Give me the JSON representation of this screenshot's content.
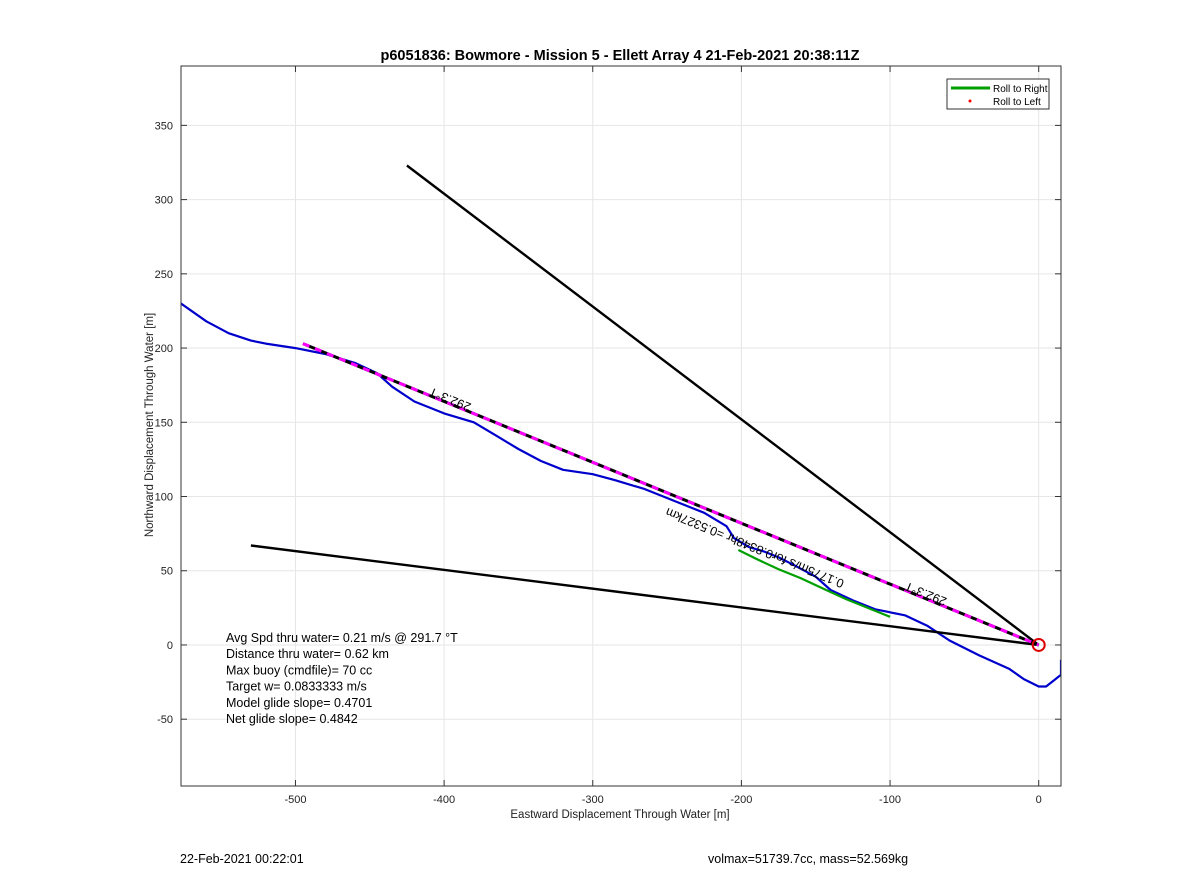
{
  "chart_data": {
    "type": "line",
    "title": "p6051836: Bowmore - Mission 5 - Ellett Array 4 21-Feb-2021 20:38:11Z",
    "xlabel": "Eastward Displacement Through Water [m]",
    "ylabel": "Northward Displacement Through Water [m]",
    "xlim": [
      -577,
      15
    ],
    "ylim": [
      -95,
      390
    ],
    "xticks": [
      -500,
      -400,
      -300,
      -200,
      -100,
      0
    ],
    "yticks": [
      -50,
      0,
      50,
      100,
      150,
      200,
      250,
      300,
      350
    ],
    "grid": true,
    "legend": {
      "position": "top-right",
      "entries": [
        {
          "label": "Roll to Right",
          "color": "#00a000",
          "marker": "line"
        },
        {
          "label": "Roll to Left",
          "color": "#ff0000",
          "marker": "dot"
        }
      ]
    },
    "series": [
      {
        "style": "track",
        "color": "#0000cc",
        "x": [
          -577,
          -560,
          -545,
          -530,
          -520,
          -500,
          -480,
          -460,
          -445,
          -435,
          -420,
          -400,
          -380,
          -365,
          -350,
          -335,
          -320,
          -300,
          -285,
          -265,
          -245,
          -225,
          -210,
          -205,
          -195,
          -185,
          -175,
          -165,
          -150,
          -140,
          -125,
          -110,
          -90,
          -75,
          -60,
          -40,
          -20,
          -10,
          0,
          5,
          10,
          15,
          15
        ],
        "y": [
          230,
          218,
          210,
          205,
          203,
          200,
          196,
          190,
          183,
          174,
          164,
          156,
          150,
          141,
          132,
          124,
          118,
          115,
          111,
          105,
          97,
          89,
          80,
          72,
          66,
          63,
          59,
          54,
          46,
          37,
          30,
          24,
          20,
          13,
          3,
          -7,
          -16,
          -23,
          -28,
          -28,
          -24,
          -20,
          -10
        ]
      },
      {
        "style": "roll-right",
        "color": "#00a000",
        "x": [
          -202,
          -190,
          -175,
          -160,
          -145,
          -130,
          -115,
          -100
        ],
        "y": [
          64,
          58,
          51,
          45,
          38,
          31,
          25,
          19
        ]
      },
      {
        "style": "black-line",
        "color": "#000000",
        "x": [
          -425,
          0
        ],
        "y": [
          323,
          0
        ]
      },
      {
        "style": "black-line",
        "color": "#000000",
        "x": [
          -530,
          0
        ],
        "y": [
          67,
          0
        ]
      },
      {
        "style": "heading-dashed",
        "color": "#ff00ff",
        "x": [
          -495,
          0
        ],
        "y": [
          203,
          0
        ]
      }
    ],
    "marker": {
      "x": 0,
      "y": 0,
      "color": "#dd0000",
      "shape": "circle"
    },
    "annotations": [
      {
        "text": "292.3°T",
        "x": -395,
        "y": 168,
        "angle": 22.3
      },
      {
        "text": "292.3°T",
        "x": -75,
        "y": 37,
        "angle": 22.3
      },
      {
        "text": "0.1775m/s for0.8348hr =0.5327km",
        "x": -190,
        "y": 68,
        "angle": 22.3
      }
    ],
    "stats": [
      "Avg Spd thru water=  0.21 m/s @ 291.7 °T",
      "Distance thru water=  0.62 km",
      "Max buoy (cmdfile)= 70 cc",
      "Target w= 0.0833333 m/s",
      "Model glide slope= 0.4701",
      "Net glide slope= 0.4842"
    ]
  },
  "footer": {
    "left": "22-Feb-2021 00:22:01",
    "right": "volmax=51739.7cc, mass=52.569kg"
  }
}
